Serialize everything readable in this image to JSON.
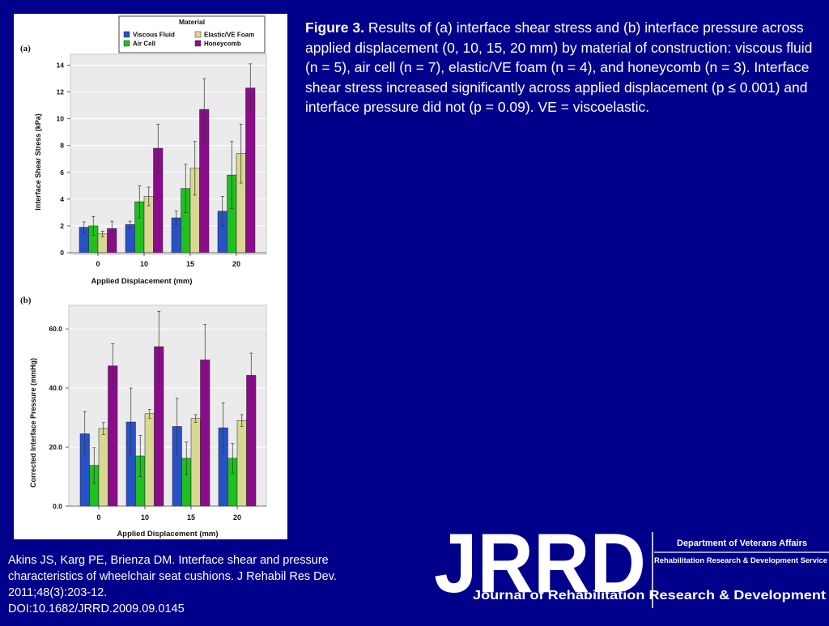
{
  "caption": {
    "label": "Figure 3.",
    "text": "Results of (a) interface shear stress and (b) interface pressure across applied displacement (0, 10, 15, 20 mm) by material of construction: viscous fluid (n = 5), air cell (n = 7), elastic/VE foam (n = 4), and honeycomb (n = 3). Interface shear stress increased significantly across applied displacement (p ≤ 0.001) and interface pressure did not (p = 0.09). VE = viscoelastic."
  },
  "citation": {
    "lines": [
      "Akins JS, Karg PE, Brienza DM. Interface shear and pressure",
      "characteristics of wheelchair seat cushions. J Rehabil Res Dev.",
      "2011;48(3):203-12.",
      "DOI:10.1682/JRRD.2009.09.0145"
    ]
  },
  "logo": {
    "wordmark": "JRRD",
    "department": "Department of Veterans Affairs",
    "service": "Rehabilitation Research & Development Service",
    "tagline": "Journal of Rehabilitation Research & Development"
  },
  "legend": {
    "title": "Material",
    "items": [
      {
        "name": "Viscous Fluid",
        "color": "#2851c8"
      },
      {
        "name": "Elastic/VE Foam",
        "color": "#d8d890"
      },
      {
        "name": "Air Cell",
        "color": "#1fc01f"
      },
      {
        "name": "Honeycomb",
        "color": "#8a0c8a"
      }
    ]
  },
  "chart_data": [
    {
      "type": "bar",
      "panel_label": "(a)",
      "xlabel": "Applied Displacement (mm)",
      "ylabel": "Interface Shear Stress (kPa)",
      "categories": [
        "0",
        "10",
        "15",
        "20"
      ],
      "ylim": [
        0,
        15
      ],
      "yticks": [
        0,
        2,
        4,
        6,
        8,
        10,
        12,
        14
      ],
      "ytick_labels": [
        "0",
        "2",
        "4",
        "6",
        "8",
        "10",
        "12",
        "14"
      ],
      "series": [
        {
          "name": "Viscous Fluid",
          "values": [
            1.9,
            2.1,
            2.6,
            3.1
          ],
          "errors": [
            0.4,
            0.25,
            0.5,
            1.1
          ]
        },
        {
          "name": "Air Cell",
          "values": [
            2.0,
            3.8,
            4.8,
            5.8
          ],
          "errors": [
            0.7,
            1.2,
            1.8,
            2.5
          ]
        },
        {
          "name": "Elastic/VE Foam",
          "values": [
            1.4,
            4.2,
            6.3,
            7.4
          ],
          "errors": [
            0.2,
            0.7,
            2.0,
            2.2
          ]
        },
        {
          "name": "Honeycomb",
          "values": [
            1.8,
            7.8,
            10.7,
            12.3
          ],
          "errors": [
            0.55,
            1.8,
            2.3,
            1.8
          ]
        }
      ]
    },
    {
      "type": "bar",
      "panel_label": "(b)",
      "xlabel": "Applied Displacement (mm)",
      "ylabel": "Corrected Interface Pressure (mmHg)",
      "categories": [
        "0",
        "10",
        "15",
        "20"
      ],
      "ylim": [
        0,
        68
      ],
      "yticks": [
        0,
        20,
        40,
        60
      ],
      "ytick_labels": [
        "0.0",
        "20.0",
        "40.0",
        "60.0"
      ],
      "series": [
        {
          "name": "Viscous Fluid",
          "values": [
            24.5,
            28.5,
            27.0,
            26.5
          ],
          "errors": [
            7.5,
            11.5,
            9.5,
            8.5
          ]
        },
        {
          "name": "Air Cell",
          "values": [
            13.8,
            17.0,
            16.2,
            16.2
          ],
          "errors": [
            6.0,
            7.0,
            5.5,
            5.0
          ]
        },
        {
          "name": "Elastic/VE Foam",
          "values": [
            26.3,
            31.3,
            29.7,
            29.0
          ],
          "errors": [
            2.0,
            1.5,
            1.3,
            2.0
          ]
        },
        {
          "name": "Honeycomb",
          "values": [
            47.5,
            54.0,
            49.5,
            44.3
          ],
          "errors": [
            7.5,
            12.0,
            12.0,
            7.5
          ]
        }
      ]
    }
  ]
}
